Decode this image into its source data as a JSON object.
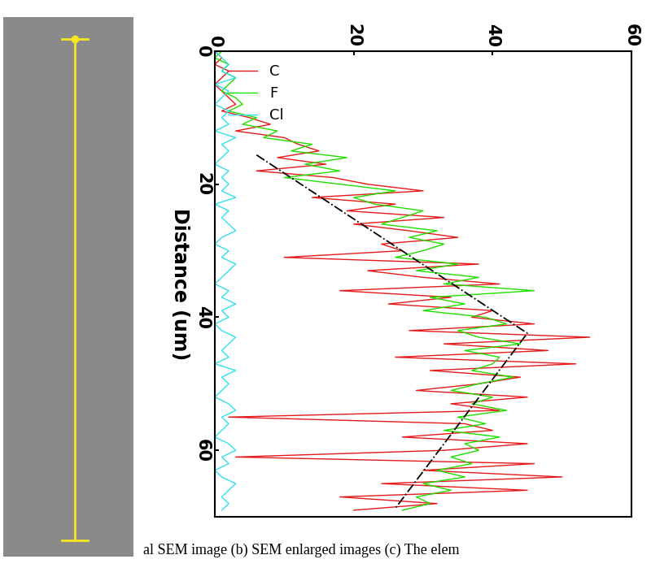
{
  "chart_data": {
    "type": "line",
    "x_label": "Distance (um)",
    "caption": "al SEM image (b) SEM enlarged images (c) The elem",
    "x": [
      0,
      1,
      2,
      3,
      4,
      5,
      6,
      7,
      8,
      9,
      10,
      11,
      12,
      13,
      14,
      15,
      16,
      17,
      18,
      19,
      20,
      21,
      22,
      23,
      24,
      25,
      26,
      27,
      28,
      29,
      30,
      31,
      32,
      33,
      34,
      35,
      36,
      37,
      38,
      39,
      40,
      41,
      42,
      43,
      44,
      45,
      46,
      47,
      48,
      49,
      50,
      51,
      52,
      53,
      54,
      55,
      56,
      57,
      58,
      59,
      60,
      61,
      62,
      63,
      64,
      65,
      66,
      67,
      68,
      69
    ],
    "xlim": [
      0,
      70
    ],
    "xticks": [
      0,
      20,
      40,
      60
    ],
    "ylim": [
      0,
      60
    ],
    "yticks": [
      0,
      20,
      40,
      60
    ],
    "legend": "upper left",
    "series": [
      {
        "name": "C",
        "color": "#e41a1c",
        "line_style": "solid",
        "values": [
          0,
          1,
          0,
          2,
          1,
          0,
          1,
          2,
          3,
          1,
          5,
          8,
          3,
          10,
          12,
          15,
          9,
          16,
          6,
          17,
          22,
          30,
          14,
          26,
          19,
          33,
          20,
          28,
          35,
          24,
          27,
          10,
          38,
          22,
          30,
          41,
          18,
          34,
          25,
          40,
          37,
          46,
          28,
          54,
          33,
          48,
          26,
          52,
          31,
          44,
          38,
          29,
          45,
          34,
          41,
          2,
          36,
          40,
          27,
          45,
          33,
          3,
          46,
          30,
          50,
          24,
          45,
          18,
          32,
          20
        ]
      },
      {
        "name": "F",
        "color": "#22dd00",
        "line_style": "solid",
        "values": [
          1,
          0,
          2,
          1,
          3,
          2,
          1,
          3,
          4,
          2,
          6,
          4,
          9,
          7,
          14,
          11,
          19,
          13,
          18,
          10,
          18,
          26,
          20,
          23,
          30,
          27,
          24,
          32,
          28,
          33,
          30,
          26,
          35,
          29,
          38,
          33,
          46,
          31,
          36,
          30,
          39,
          42,
          35,
          38,
          44,
          36,
          41,
          40,
          37,
          43,
          38,
          34,
          40,
          37,
          42,
          35,
          39,
          33,
          41,
          36,
          38,
          34,
          37,
          32,
          36,
          30,
          34,
          29,
          31,
          27
        ]
      },
      {
        "name": "Cl",
        "color": "#33e0f0",
        "line_style": "solid",
        "values": [
          0,
          1,
          2,
          1,
          3,
          0,
          2,
          1,
          0,
          2,
          1,
          2,
          0,
          3,
          1,
          2,
          1,
          0,
          2,
          1,
          2,
          1,
          3,
          0,
          2,
          1,
          2,
          3,
          1,
          0,
          2,
          1,
          3,
          2,
          1,
          0,
          2,
          1,
          3,
          1,
          2,
          0,
          1,
          3,
          2,
          1,
          2,
          0,
          3,
          1,
          2,
          1,
          0,
          2,
          3,
          1,
          2,
          1,
          0,
          2,
          3,
          1,
          2,
          0,
          1,
          3,
          2,
          1,
          2,
          1
        ]
      },
      {
        "color": "#000000",
        "line_style": "dashdot",
        "x": [
          15.6,
          42.4,
          68.7
        ],
        "values": [
          6,
          45,
          26
        ]
      }
    ]
  }
}
